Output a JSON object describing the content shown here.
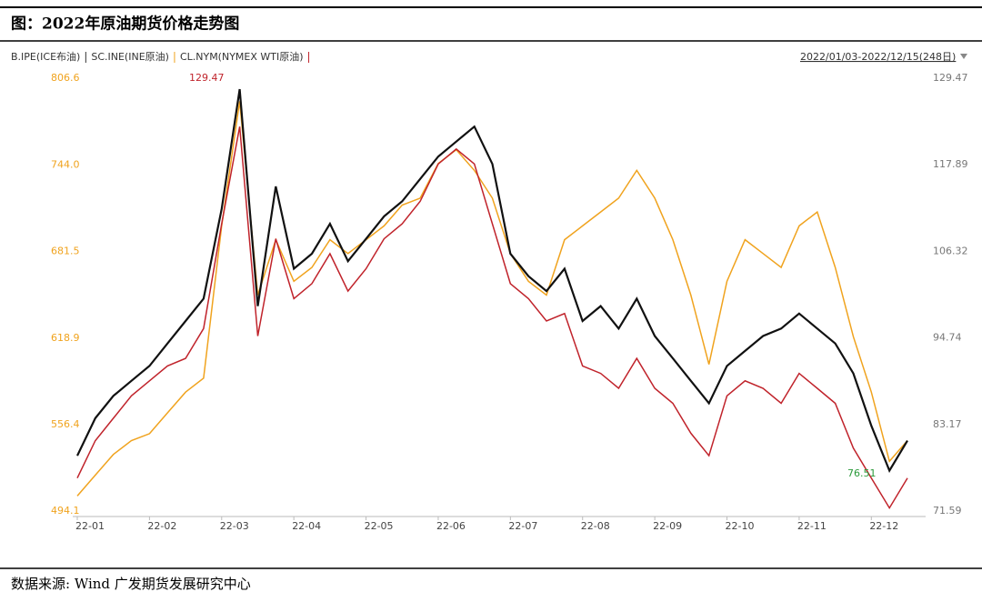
{
  "title": "图：2022年原油期货价格走势图",
  "source": "数据来源: Wind  广发期货发展研究中心",
  "chart_data": {
    "type": "line",
    "date_range": "2022/01/03-2022/12/15(248日)",
    "categories": [
      "22-01",
      null,
      null,
      null,
      "22-02",
      null,
      null,
      null,
      "22-03",
      null,
      null,
      null,
      "22-04",
      null,
      null,
      null,
      "22-05",
      null,
      null,
      null,
      "22-06",
      null,
      null,
      null,
      "22-07",
      null,
      null,
      null,
      "22-08",
      null,
      null,
      null,
      "22-09",
      null,
      null,
      null,
      "22-10",
      null,
      null,
      null,
      "22-11",
      null,
      null,
      null,
      "22-12",
      null,
      null
    ],
    "ylim": [
      494.1,
      806.6
    ],
    "yticks": [
      494.1,
      556.4,
      618.9,
      681.5,
      {
        "value": 744,
        "label": "744.0"
      },
      806.6
    ],
    "y2lim": [
      71.59,
      129.47
    ],
    "y2ticks": [
      71.59,
      83.17,
      94.74,
      106.32,
      117.89,
      129.47
    ],
    "series": [
      {
        "name": "B.IPE(ICE布油)",
        "color": "#111111",
        "axis": "y2",
        "values": [
          79,
          84,
          87,
          89,
          91,
          94,
          97,
          100,
          112,
          128,
          99,
          115,
          104,
          106,
          110,
          105,
          108,
          111,
          113,
          116,
          119,
          121,
          123,
          118,
          106,
          103,
          101,
          104,
          97,
          99,
          96,
          100,
          95,
          92,
          89,
          86,
          91,
          93,
          95,
          96,
          98,
          96,
          94,
          90,
          83,
          77,
          81
        ]
      },
      {
        "name": "SC.INE(INE原油)",
        "color": "#f0a31e",
        "values": [
          505,
          520,
          535,
          545,
          550,
          565,
          580,
          590,
          700,
          790,
          650,
          690,
          660,
          670,
          690,
          680,
          690,
          700,
          715,
          720,
          745,
          755,
          740,
          720,
          680,
          660,
          650,
          690,
          700,
          710,
          720,
          740,
          720,
          690,
          650,
          600,
          660,
          690,
          680,
          670,
          700,
          710,
          670,
          620,
          580,
          530,
          545
        ]
      },
      {
        "name": "CL.NYM(NYMEX WTI原油)",
        "color": "#c0232b",
        "axis": "y2",
        "values": [
          76,
          81,
          84,
          87,
          89,
          91,
          92,
          96,
          110,
          123,
          95,
          108,
          100,
          102,
          106,
          101,
          104,
          108,
          110,
          113,
          118,
          120,
          118,
          110,
          102,
          100,
          97,
          98,
          91,
          90,
          88,
          92,
          88,
          86,
          82,
          79,
          87,
          89,
          88,
          86,
          90,
          88,
          86,
          80,
          76,
          72,
          76
        ]
      }
    ],
    "annotations": [
      "129.47",
      "76.51"
    ]
  }
}
